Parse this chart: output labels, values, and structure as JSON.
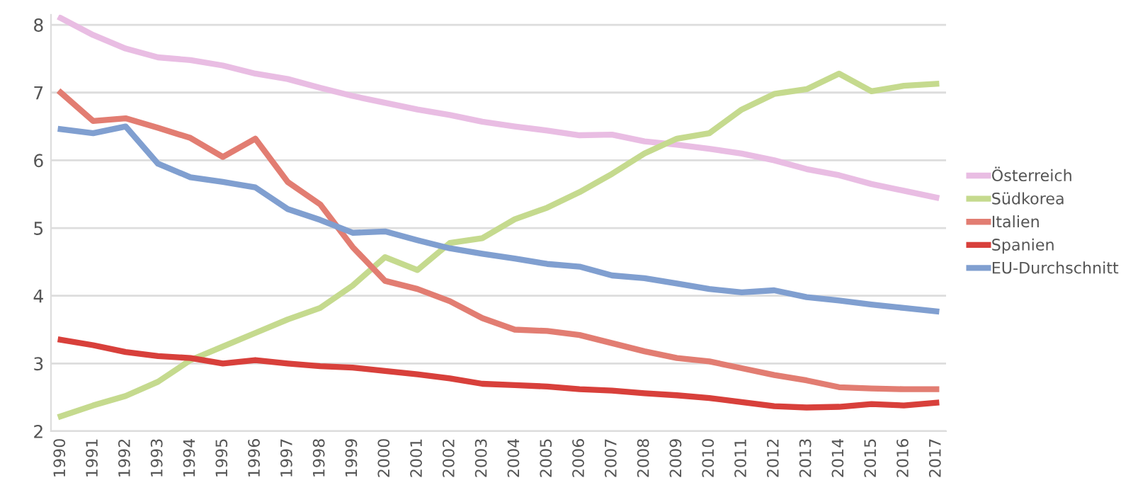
{
  "chart_data": {
    "type": "line",
    "categories": [
      "1990",
      "1991",
      "1992",
      "1993",
      "1994",
      "1995",
      "1996",
      "1997",
      "1998",
      "1999",
      "2000",
      "2001",
      "2002",
      "2003",
      "2004",
      "2005",
      "2006",
      "2007",
      "2008",
      "2009",
      "2010",
      "2011",
      "2012",
      "2013",
      "2014",
      "2015",
      "2016",
      "2017"
    ],
    "series": [
      {
        "name": "Österreich",
        "color": "#e9bde3",
        "values": [
          8.1,
          7.85,
          7.65,
          7.52,
          7.48,
          7.4,
          7.28,
          7.2,
          7.07,
          6.95,
          6.85,
          6.75,
          6.67,
          6.57,
          6.5,
          6.44,
          6.37,
          6.38,
          6.28,
          6.23,
          6.17,
          6.1,
          6.0,
          5.87,
          5.78,
          5.65,
          5.55,
          5.45
        ]
      },
      {
        "name": "Südkorea",
        "color": "#c5da8e",
        "values": [
          2.22,
          2.38,
          2.52,
          2.73,
          3.05,
          3.25,
          3.45,
          3.65,
          3.82,
          4.15,
          4.57,
          4.38,
          4.78,
          4.85,
          5.13,
          5.3,
          5.53,
          5.8,
          6.1,
          6.32,
          6.4,
          6.75,
          6.98,
          7.05,
          7.28,
          7.02,
          7.1,
          7.13
        ]
      },
      {
        "name": "Italien",
        "color": "#e27d72",
        "values": [
          7.0,
          6.58,
          6.62,
          6.48,
          6.33,
          6.05,
          6.32,
          5.68,
          5.35,
          4.72,
          4.22,
          4.1,
          3.92,
          3.67,
          3.5,
          3.48,
          3.42,
          3.3,
          3.18,
          3.08,
          3.03,
          2.93,
          2.83,
          2.75,
          2.65,
          2.63,
          2.62,
          2.62
        ]
      },
      {
        "name": "Spanien",
        "color": "#d8403b",
        "values": [
          3.35,
          3.27,
          3.17,
          3.11,
          3.08,
          3.0,
          3.05,
          3.0,
          2.96,
          2.94,
          2.89,
          2.84,
          2.78,
          2.7,
          2.68,
          2.66,
          2.62,
          2.6,
          2.56,
          2.53,
          2.49,
          2.43,
          2.37,
          2.35,
          2.36,
          2.4,
          2.38,
          2.42
        ]
      },
      {
        "name": "EU-Durchschnitt",
        "color": "#809fd0",
        "values": [
          6.46,
          6.4,
          6.5,
          5.95,
          5.75,
          5.68,
          5.6,
          5.28,
          5.12,
          4.93,
          4.95,
          4.82,
          4.7,
          4.62,
          4.55,
          4.47,
          4.43,
          4.3,
          4.26,
          4.18,
          4.1,
          4.05,
          4.08,
          3.98,
          3.93,
          3.87,
          3.82,
          3.77
        ]
      }
    ],
    "ylim": [
      2,
      8.15
    ],
    "yticks": [
      2,
      3,
      4,
      5,
      6,
      7,
      8
    ],
    "grid": "y",
    "legend": "right",
    "marker": "none",
    "line_style": "solid"
  }
}
